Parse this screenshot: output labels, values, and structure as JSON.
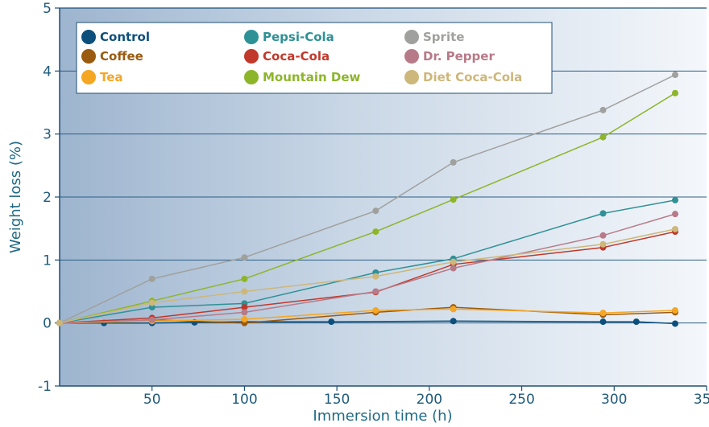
{
  "chart_data": {
    "type": "line",
    "title": "",
    "xlabel": "Immersion time (h)",
    "ylabel": "Weight loss (%)",
    "xlim": [
      0,
      350
    ],
    "ylim": [
      -1,
      5
    ],
    "xticks": [
      "50",
      "100",
      "150",
      "200",
      "250",
      "300",
      "350"
    ],
    "yticks": [
      "-1",
      "0",
      "1",
      "2",
      "3",
      "4",
      "5"
    ],
    "grid": "horizontal",
    "legend_position": "top-left",
    "series": [
      {
        "name": "Control",
        "color": "#0d4f7c",
        "x": [
          0,
          24,
          50,
          73,
          100,
          147,
          213,
          294,
          312,
          333
        ],
        "y": [
          0,
          0.0,
          0.0,
          0.01,
          0.02,
          0.02,
          0.03,
          0.02,
          0.02,
          -0.01
        ]
      },
      {
        "name": "Coffee",
        "color": "#9a5a0f",
        "x": [
          0,
          50,
          100,
          171,
          213,
          294,
          333
        ],
        "y": [
          0,
          0.05,
          0.0,
          0.17,
          0.25,
          0.13,
          0.17
        ]
      },
      {
        "name": "Tea",
        "color": "#f5a623",
        "x": [
          0,
          50,
          100,
          171,
          213,
          294,
          333
        ],
        "y": [
          0,
          0.03,
          0.06,
          0.2,
          0.22,
          0.16,
          0.2
        ]
      },
      {
        "name": "Pepsi-Cola",
        "color": "#2e9196",
        "x": [
          0,
          50,
          100,
          171,
          213,
          294,
          333
        ],
        "y": [
          0,
          0.25,
          0.31,
          0.8,
          1.02,
          1.74,
          1.95
        ]
      },
      {
        "name": "Coca-Cola",
        "color": "#c0392b",
        "x": [
          0,
          50,
          100,
          171,
          213,
          294,
          333
        ],
        "y": [
          0,
          0.08,
          0.25,
          0.49,
          0.93,
          1.2,
          1.45
        ]
      },
      {
        "name": "Mountain Dew",
        "color": "#8db52a",
        "x": [
          0,
          50,
          100,
          171,
          213,
          294,
          333
        ],
        "y": [
          0,
          0.35,
          0.7,
          1.45,
          1.96,
          2.95,
          3.65
        ]
      },
      {
        "name": "Sprite",
        "color": "#a0a09e",
        "x": [
          0,
          50,
          100,
          171,
          213,
          294,
          333
        ],
        "y": [
          0,
          0.7,
          1.04,
          1.78,
          2.55,
          3.38,
          3.94
        ]
      },
      {
        "name": "Dr. Pepper",
        "color": "#b77a88",
        "x": [
          0,
          50,
          100,
          171,
          213,
          294,
          333
        ],
        "y": [
          0,
          0.05,
          0.17,
          0.5,
          0.87,
          1.39,
          1.73
        ]
      },
      {
        "name": "Diet Coca-Cola",
        "color": "#cdb77a",
        "x": [
          0,
          50,
          100,
          171,
          213,
          294,
          333
        ],
        "y": [
          0,
          0.32,
          0.5,
          0.74,
          0.97,
          1.25,
          1.49
        ]
      }
    ]
  }
}
